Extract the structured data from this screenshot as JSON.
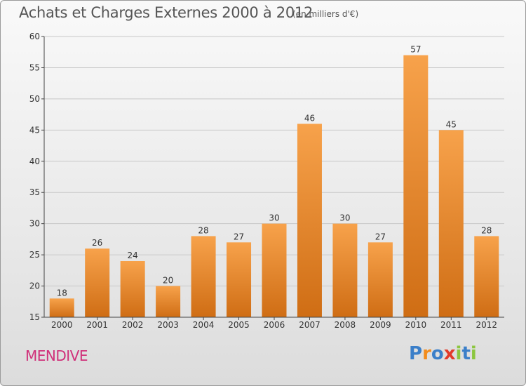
{
  "title": "Achats et Charges Externes 2000 à 2012",
  "unit_note": "(en milliers d'€)",
  "commune": "MENDIVE",
  "brand": {
    "letters": [
      "P",
      "r",
      "o",
      "x",
      "i",
      "t",
      "i"
    ],
    "colors": [
      "#3b7fc9",
      "#f28c1c",
      "#3b7fc9",
      "#e23b2a",
      "#8cc63f",
      "#3b7fc9",
      "#8cc63f"
    ]
  },
  "colors": {
    "bar_top": "#f7a24b",
    "bar_bottom": "#cf6d14",
    "axis": "#444444",
    "grid": "#c8c8c8"
  },
  "chart_data": {
    "type": "bar",
    "categories": [
      "2000",
      "2001",
      "2002",
      "2003",
      "2004",
      "2005",
      "2006",
      "2007",
      "2008",
      "2009",
      "2010",
      "2011",
      "2012"
    ],
    "values": [
      18,
      26,
      24,
      20,
      28,
      27,
      30,
      46,
      30,
      27,
      57,
      45,
      28
    ],
    "ylim": [
      15,
      60
    ],
    "yticks": [
      15,
      20,
      25,
      30,
      35,
      40,
      45,
      50,
      55,
      60
    ],
    "grid": true,
    "data_labels": true
  }
}
